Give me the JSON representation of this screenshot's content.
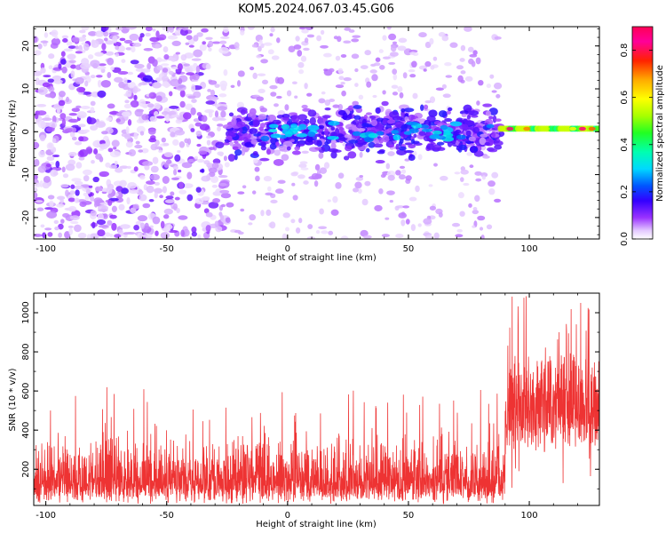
{
  "title": "KOM5.2024.067.03.45.G06",
  "chart_data": [
    {
      "type": "heatmap",
      "xlabel": "Height of straight line (km)",
      "ylabel": "Frequency (Hz)",
      "xlim": [
        -105,
        129
      ],
      "ylim": [
        -25,
        24.5
      ],
      "xticks": [
        -100,
        -50,
        0,
        50,
        100
      ],
      "yticks": [
        -20,
        -10,
        0,
        10,
        20
      ],
      "colorbar": {
        "label": "Normalized spectral amplitude",
        "range": [
          0.0,
          0.9
        ],
        "ticks": [
          0.0,
          0.2,
          0.4,
          0.6,
          0.8
        ],
        "colormap": "gist_ncar_r"
      },
      "features": [
        {
          "x_range": [
            -105,
            -25
          ],
          "freq_range": [
            -25,
            24.5
          ],
          "amplitude": [
            0.03,
            0.15
          ]
        },
        {
          "x_range": [
            -25,
            88
          ],
          "freq_range": [
            -6,
            6
          ],
          "amplitude": [
            0.08,
            0.22
          ],
          "center_freq": 0
        },
        {
          "x_range": [
            88,
            129
          ],
          "freq": 0.7,
          "amplitude": [
            0.35,
            0.9
          ],
          "narrowband": true
        }
      ]
    },
    {
      "type": "line",
      "xlabel": "Height of straight line (km)",
      "ylabel": "SNR (10 * v/v)",
      "xlim": [
        -105,
        129
      ],
      "ylim": [
        15,
        1100
      ],
      "xticks": [
        -100,
        -50,
        0,
        50,
        100
      ],
      "yticks": [
        200,
        400,
        600,
        800,
        1000
      ],
      "series": [
        {
          "color": "#ee3333",
          "segments": [
            {
              "x_range": [
                -105,
                90
              ],
              "mean": 180,
              "typical_max": 450,
              "peak": 620
            },
            {
              "x_range": [
                90,
                129
              ],
              "mean": 610,
              "typical_min": 300,
              "peak": 1090
            }
          ]
        }
      ]
    }
  ]
}
